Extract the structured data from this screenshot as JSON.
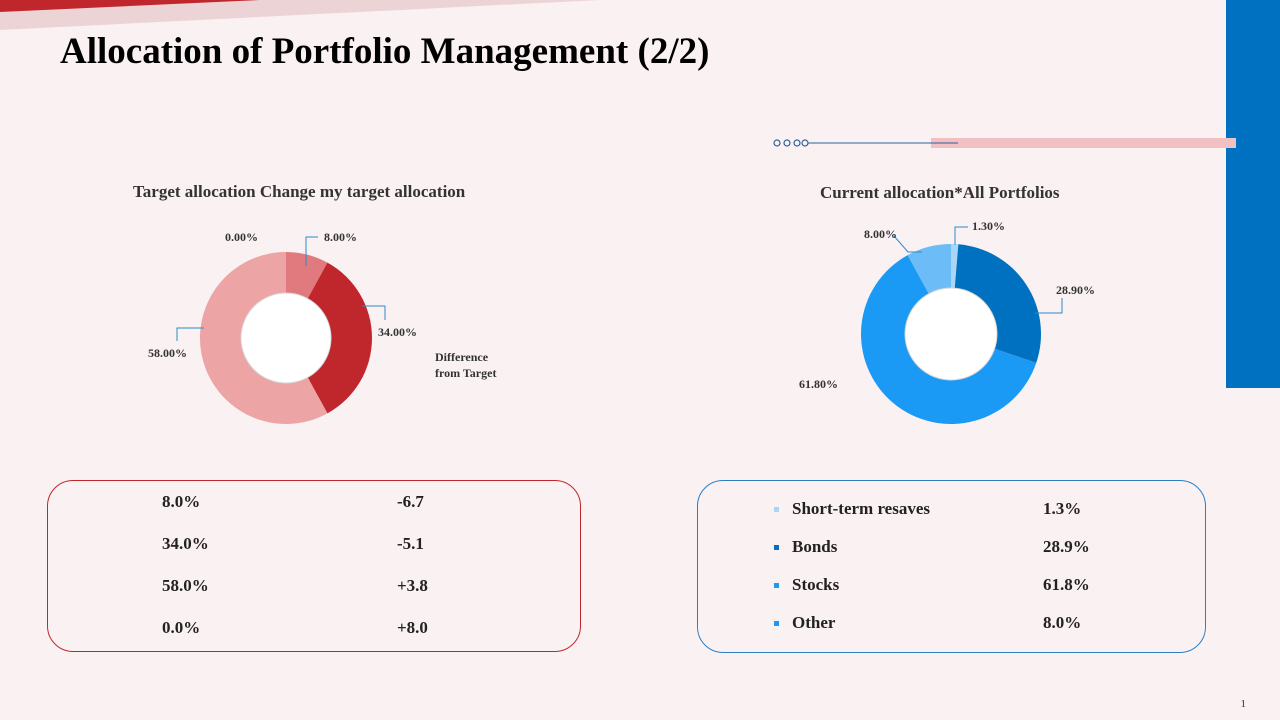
{
  "title": "Allocation of Portfolio Management (2/2)",
  "page_number": "1",
  "colors": {
    "red_dark": "#c0272d",
    "red_mid": "#e07a7e",
    "red_light": "#eca4a5",
    "blue_dark": "#0070c0",
    "blue_mid": "#1a9af5",
    "blue_light": "#6cbdf7",
    "blue_pale": "#a9d6f7",
    "leader": "#2e8bcf"
  },
  "left_table": {
    "rows": [
      {
        "value": "8.0%",
        "diff": "-6.7"
      },
      {
        "value": "34.0%",
        "diff": "-5.1"
      },
      {
        "value": "58.0%",
        "diff": "+3.8"
      },
      {
        "value": "0.0%",
        "diff": "+8.0"
      }
    ]
  },
  "right_table": {
    "rows": [
      {
        "name": "Short-term resaves",
        "value": "1.3%",
        "bullet_color": "#a9d6f7"
      },
      {
        "name": "Bonds",
        "value": "28.9%",
        "bullet_color": "#0070c0"
      },
      {
        "name": "Stocks",
        "value": "61.8%",
        "bullet_color": "#1a9af5"
      },
      {
        "name": "Other",
        "value": "8.0%",
        "bullet_color": "#1a9af5"
      }
    ]
  },
  "chart_data": [
    {
      "type": "pie",
      "title": "Target allocation Change my target allocation",
      "annotation": "Difference from Target",
      "slices": [
        {
          "value": 8.0,
          "label": "8.00%",
          "color": "#e07a7e"
        },
        {
          "value": 34.0,
          "label": "34.00%",
          "color": "#c0272d"
        },
        {
          "value": 58.0,
          "label": "58.00%",
          "color": "#eca4a5"
        },
        {
          "value": 0.0,
          "label": "0.00%",
          "color": "#e07a7e"
        }
      ]
    },
    {
      "type": "pie",
      "title": "Current allocation*All Portfolios",
      "slices": [
        {
          "value": 1.3,
          "label": "1.30%",
          "color": "#a9d6f7"
        },
        {
          "value": 28.9,
          "label": "28.90%",
          "color": "#0070c0"
        },
        {
          "value": 61.8,
          "label": "61.80%",
          "color": "#1a9af5"
        },
        {
          "value": 8.0,
          "label": "8.00%",
          "color": "#6cbdf7"
        }
      ]
    }
  ]
}
